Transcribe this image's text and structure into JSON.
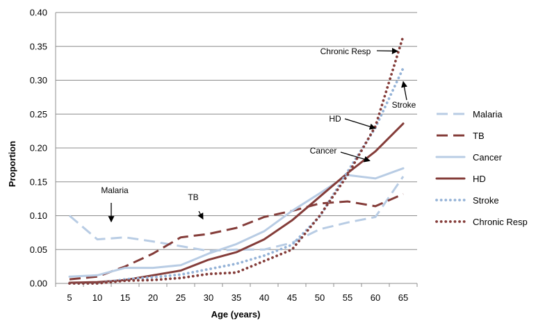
{
  "chart_data": {
    "type": "line",
    "xlabel": "Age (years)",
    "ylabel": "Proportion",
    "x": [
      5,
      10,
      15,
      20,
      25,
      30,
      35,
      40,
      45,
      50,
      55,
      60,
      65
    ],
    "ylim": [
      0,
      0.4
    ],
    "yticks": [
      "0.00",
      "0.05",
      "0.10",
      "0.15",
      "0.20",
      "0.25",
      "0.30",
      "0.35",
      "0.40"
    ],
    "grid": true,
    "legend_position": "right",
    "series": [
      {
        "name": "Malaria",
        "color": "#b8cce4",
        "dash": "long-dash",
        "values": [
          0.1,
          0.065,
          0.068,
          0.062,
          0.055,
          0.048,
          0.05,
          0.05,
          0.06,
          0.08,
          0.09,
          0.098,
          0.158
        ]
      },
      {
        "name": "TB",
        "color": "#843c39",
        "dash": "long-dash",
        "values": [
          0.006,
          0.01,
          0.025,
          0.044,
          0.068,
          0.073,
          0.082,
          0.098,
          0.107,
          0.118,
          0.121,
          0.114,
          0.132
        ]
      },
      {
        "name": "Cancer",
        "color": "#b8cce4",
        "dash": "solid",
        "values": [
          0.01,
          0.012,
          0.023,
          0.023,
          0.027,
          0.044,
          0.058,
          0.077,
          0.107,
          0.133,
          0.16,
          0.155,
          0.17
        ]
      },
      {
        "name": "HD",
        "color": "#843c39",
        "dash": "solid",
        "values": [
          0.001,
          0.002,
          0.005,
          0.012,
          0.019,
          0.035,
          0.046,
          0.065,
          0.093,
          0.128,
          0.163,
          0.195,
          0.236
        ]
      },
      {
        "name": "Stroke",
        "color": "#95b3d7",
        "dash": "dotted",
        "values": [
          0.0,
          0.0,
          0.006,
          0.009,
          0.013,
          0.021,
          0.029,
          0.041,
          0.057,
          0.099,
          0.165,
          0.23,
          0.318
        ]
      },
      {
        "name": "Chronic Resp",
        "color": "#843c39",
        "dash": "dotted",
        "values": [
          0.0,
          0.0,
          0.004,
          0.005,
          0.008,
          0.014,
          0.016,
          0.033,
          0.05,
          0.1,
          0.16,
          0.232,
          0.365
        ]
      }
    ],
    "annotations": [
      {
        "label": "Malaria",
        "target_x": 12.5,
        "target_y": 0.091
      },
      {
        "label": "TB",
        "target_x": 29,
        "target_y": 0.095
      },
      {
        "label": "Cancer",
        "target_x": 59,
        "target_y": 0.181
      },
      {
        "label": "HD",
        "target_x": 60,
        "target_y": 0.229
      },
      {
        "label": "Stroke",
        "target_x": 65,
        "target_y": 0.298
      },
      {
        "label": "Chronic Resp",
        "target_x": 64,
        "target_y": 0.343
      }
    ]
  }
}
